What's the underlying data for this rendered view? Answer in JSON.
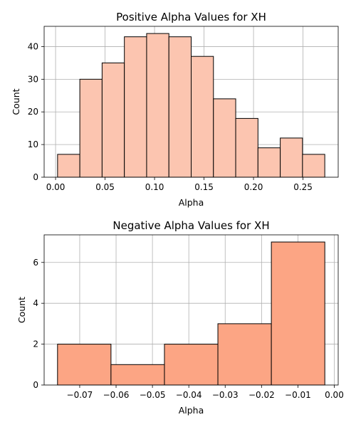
{
  "chart_data": [
    {
      "type": "bar",
      "title": "Positive Alpha Values for XH",
      "xlabel": "Alpha",
      "ylabel": "Count",
      "bar_color": "#fcc5b0",
      "bins": [
        {
          "start": 0.002,
          "end": 0.0245,
          "count": 7
        },
        {
          "start": 0.0245,
          "end": 0.047,
          "count": 30
        },
        {
          "start": 0.047,
          "end": 0.0695,
          "count": 35
        },
        {
          "start": 0.0695,
          "end": 0.092,
          "count": 43
        },
        {
          "start": 0.092,
          "end": 0.1145,
          "count": 44
        },
        {
          "start": 0.1145,
          "end": 0.137,
          "count": 43
        },
        {
          "start": 0.137,
          "end": 0.1595,
          "count": 37
        },
        {
          "start": 0.1595,
          "end": 0.182,
          "count": 24
        },
        {
          "start": 0.182,
          "end": 0.2045,
          "count": 18
        },
        {
          "start": 0.2045,
          "end": 0.227,
          "count": 9
        },
        {
          "start": 0.227,
          "end": 0.2495,
          "count": 12
        },
        {
          "start": 0.2495,
          "end": 0.272,
          "count": 7
        }
      ],
      "xlim": [
        -0.01156,
        0.28556
      ],
      "ylim": [
        0,
        46.2
      ],
      "xticks": [
        0.0,
        0.05,
        0.1,
        0.15,
        0.2,
        0.25
      ],
      "xtick_labels": [
        "0.00",
        "0.05",
        "0.10",
        "0.15",
        "0.20",
        "0.25"
      ],
      "yticks": [
        0,
        10,
        20,
        30,
        40
      ],
      "ytick_labels": [
        "0",
        "10",
        "20",
        "30",
        "40"
      ],
      "grid": true
    },
    {
      "type": "bar",
      "title": "Negative Alpha Values for XH",
      "xlabel": "Alpha",
      "ylabel": "Count",
      "bar_color": "#fca584",
      "bins": [
        {
          "start": -0.0761,
          "end": -0.0614,
          "count": 2
        },
        {
          "start": -0.0614,
          "end": -0.0467,
          "count": 1
        },
        {
          "start": -0.0467,
          "end": -0.032,
          "count": 2
        },
        {
          "start": -0.032,
          "end": -0.0173,
          "count": 3
        },
        {
          "start": -0.0173,
          "end": -0.0026,
          "count": 7
        }
      ],
      "xlim": [
        -0.07978,
        0.00108
      ],
      "ylim": [
        0,
        7.35
      ],
      "xticks": [
        -0.07,
        -0.06,
        -0.05,
        -0.04,
        -0.03,
        -0.02,
        -0.01,
        0.0
      ],
      "xtick_labels": [
        "−0.07",
        "−0.06",
        "−0.05",
        "−0.04",
        "−0.03",
        "−0.02",
        "−0.01",
        "0.00"
      ],
      "yticks": [
        0,
        2,
        4,
        6
      ],
      "ytick_labels": [
        "0",
        "2",
        "4",
        "6"
      ],
      "grid": true
    }
  ]
}
